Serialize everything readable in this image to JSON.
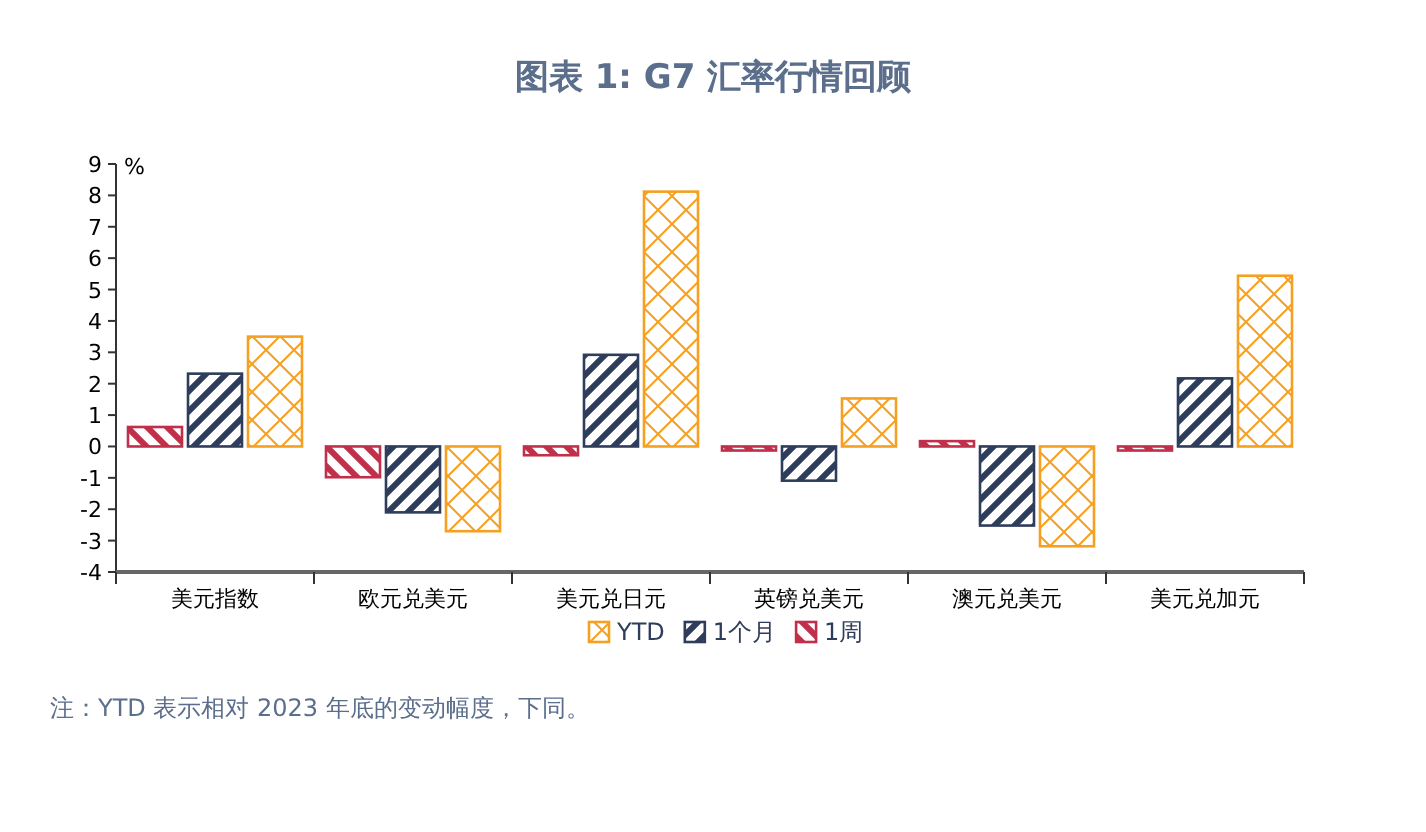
{
  "chart_data": {
    "type": "bar",
    "title": "图表 1: G7 汇率行情回顾",
    "categories": [
      "美元指数",
      "欧元兑美元",
      "美元兑日元",
      "英镑兑美元",
      "澳元兑美元",
      "美元兑加元"
    ],
    "series": [
      {
        "name": "1周",
        "color": "#c0304a",
        "values": [
          0.62,
          -0.98,
          -0.28,
          -0.13,
          0.17,
          -0.13
        ]
      },
      {
        "name": "1个月",
        "color": "#2e3d5c",
        "values": [
          2.32,
          -2.1,
          2.92,
          -1.09,
          -2.52,
          2.17
        ]
      },
      {
        "name": "YTD",
        "color": "#f5a020",
        "values": [
          3.5,
          -2.7,
          8.12,
          1.53,
          -3.18,
          5.44
        ]
      }
    ],
    "ylabel": "%",
    "ylim": [
      -4,
      9
    ],
    "yticks": [
      -4,
      -3,
      -2,
      -1,
      0,
      1,
      2,
      3,
      4,
      5,
      6,
      7,
      8,
      9
    ],
    "legend": "bottom",
    "grid": false,
    "annotations": [
      "注：YTD 表示相对 2023 年底的变动幅度，下同。"
    ]
  }
}
